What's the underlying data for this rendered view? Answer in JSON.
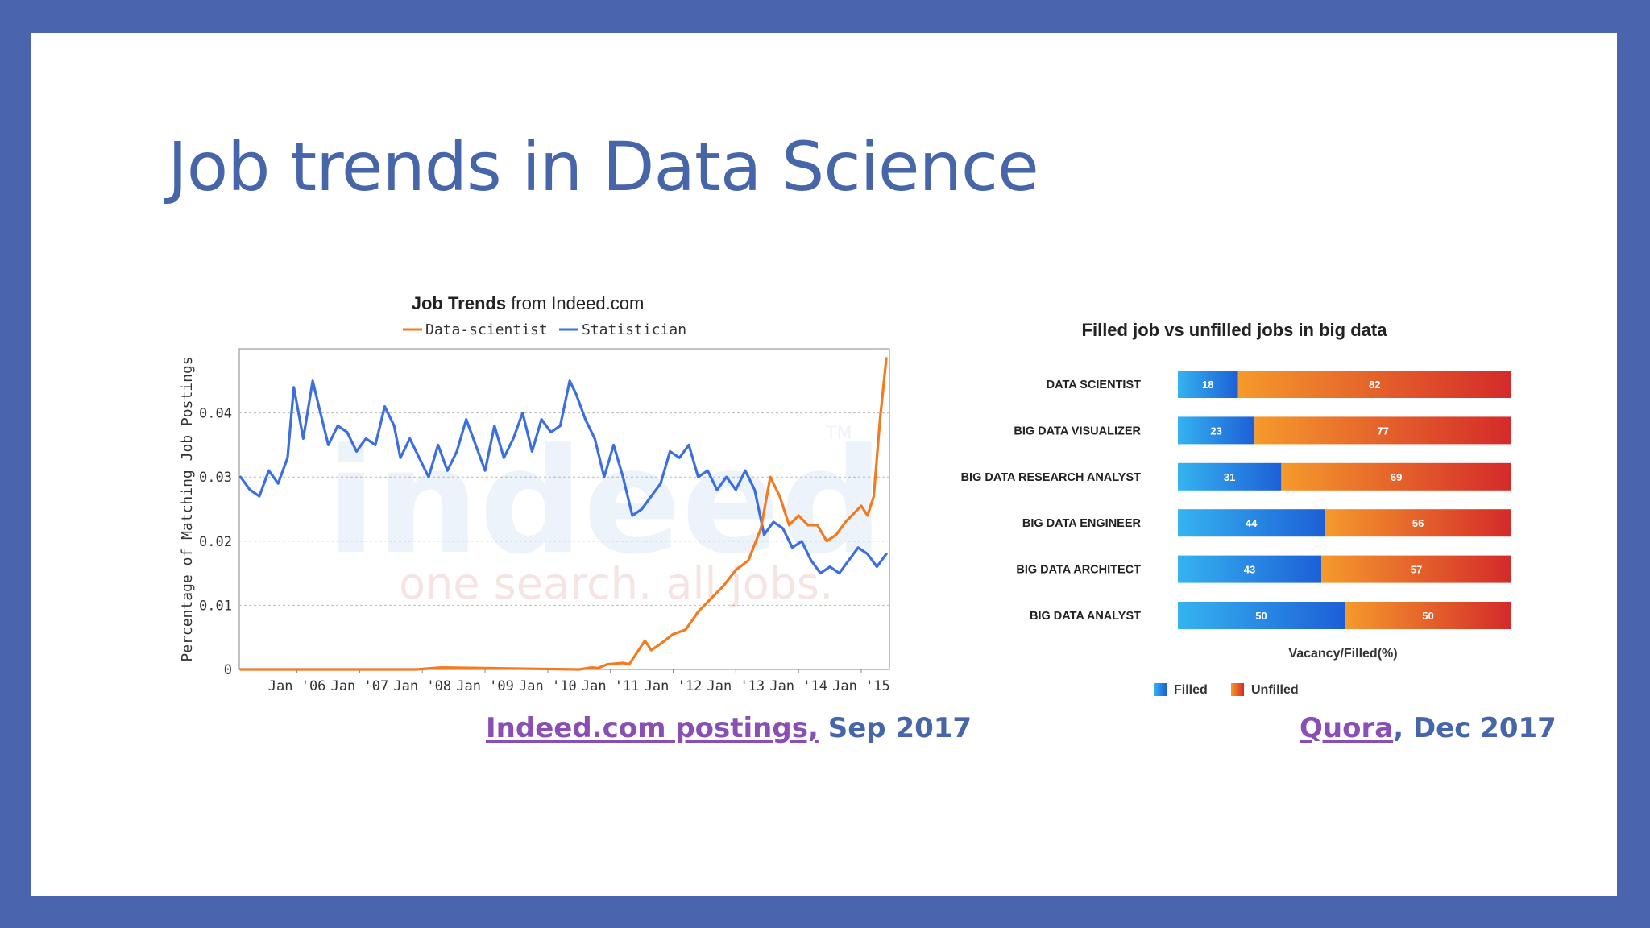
{
  "slide": {
    "title": "Job trends in Data Science",
    "caption_left": {
      "link": "Indeed.com postings,",
      "text": " Sep 2017"
    },
    "caption_right": {
      "link": "Quora",
      "text": ", Dec 2017"
    }
  },
  "colors": {
    "frame": "#4a65ad",
    "title": "#4766aa",
    "link": "#8a4fb5",
    "data_scientist": "#f47a20",
    "statistician": "#3b6fe0",
    "filled": "#1f8de2",
    "unfilled": "#e8622a"
  },
  "chart_data": [
    {
      "type": "line",
      "title_bold": "Job Trends",
      "title_rest": " from Indeed.com",
      "ylabel": "Percentage of Matching Job Postings",
      "watermark": {
        "brand": "indeed",
        "tagline": "one search. all jobs.",
        "tm": "TM"
      },
      "x_ticks": [
        "Jan '06",
        "Jan '07",
        "Jan '08",
        "Jan '09",
        "Jan '10",
        "Jan '11",
        "Jan '12",
        "Jan '13",
        "Jan '14",
        "Jan '15"
      ],
      "y_ticks": [
        "0",
        "0.01",
        "0.02",
        "0.03",
        "0.04"
      ],
      "xlim": [
        2005.08,
        2015.45
      ],
      "ylim": [
        0,
        0.05
      ],
      "grid": true,
      "legend_position": "top",
      "series": [
        {
          "name": "Data-scientist",
          "color": "#f47a20",
          "x": [
            2005.1,
            2007.9,
            2008.3,
            2010.5,
            2010.7,
            2010.8,
            2010.95,
            2011.2,
            2011.3,
            2011.55,
            2011.65,
            2011.8,
            2012.0,
            2012.2,
            2012.4,
            2012.6,
            2012.8,
            2013.0,
            2013.2,
            2013.4,
            2013.55,
            2013.7,
            2013.85,
            2014.0,
            2014.15,
            2014.3,
            2014.45,
            2014.6,
            2014.75,
            2014.9,
            2015.0,
            2015.1,
            2015.2,
            2015.3,
            2015.4
          ],
          "y": [
            0,
            0,
            0.0003,
            0,
            0.0003,
            0.0002,
            0.0008,
            0.001,
            0.0008,
            0.0045,
            0.003,
            0.004,
            0.0055,
            0.0062,
            0.009,
            0.011,
            0.013,
            0.0155,
            0.017,
            0.022,
            0.03,
            0.027,
            0.0225,
            0.024,
            0.0225,
            0.0225,
            0.02,
            0.021,
            0.023,
            0.0245,
            0.0255,
            0.024,
            0.027,
            0.039,
            0.0485
          ]
        },
        {
          "name": "Statistician",
          "color": "#3b6fe0",
          "x": [
            2005.1,
            2005.25,
            2005.4,
            2005.55,
            2005.7,
            2005.85,
            2005.95,
            2006.1,
            2006.25,
            2006.35,
            2006.5,
            2006.65,
            2006.8,
            2006.95,
            2007.1,
            2007.25,
            2007.4,
            2007.55,
            2007.65,
            2007.8,
            2007.95,
            2008.1,
            2008.25,
            2008.4,
            2008.55,
            2008.7,
            2008.85,
            2009.0,
            2009.15,
            2009.3,
            2009.45,
            2009.6,
            2009.75,
            2009.9,
            2010.05,
            2010.2,
            2010.35,
            2010.45,
            2010.6,
            2010.75,
            2010.9,
            2011.05,
            2011.2,
            2011.35,
            2011.5,
            2011.65,
            2011.8,
            2011.95,
            2012.1,
            2012.25,
            2012.4,
            2012.55,
            2012.7,
            2012.85,
            2013.0,
            2013.15,
            2013.3,
            2013.45,
            2013.6,
            2013.75,
            2013.9,
            2014.05,
            2014.2,
            2014.35,
            2014.5,
            2014.65,
            2014.8,
            2014.95,
            2015.1,
            2015.25,
            2015.4
          ],
          "y": [
            0.03,
            0.028,
            0.027,
            0.031,
            0.029,
            0.033,
            0.044,
            0.036,
            0.045,
            0.041,
            0.035,
            0.038,
            0.037,
            0.034,
            0.036,
            0.035,
            0.041,
            0.038,
            0.033,
            0.036,
            0.033,
            0.03,
            0.035,
            0.031,
            0.034,
            0.039,
            0.035,
            0.031,
            0.038,
            0.033,
            0.036,
            0.04,
            0.034,
            0.039,
            0.037,
            0.038,
            0.045,
            0.043,
            0.039,
            0.036,
            0.03,
            0.035,
            0.03,
            0.024,
            0.025,
            0.027,
            0.029,
            0.034,
            0.033,
            0.035,
            0.03,
            0.031,
            0.028,
            0.03,
            0.028,
            0.031,
            0.028,
            0.021,
            0.023,
            0.022,
            0.019,
            0.02,
            0.017,
            0.015,
            0.016,
            0.015,
            0.017,
            0.019,
            0.018,
            0.016,
            0.018
          ]
        }
      ]
    },
    {
      "type": "bar",
      "stacked": true,
      "orientation": "horizontal",
      "title": "Filled job vs unfilled jobs in big data",
      "xlabel": "Vacancy/Filled(%)",
      "categories": [
        "DATA SCIENTIST",
        "BIG DATA VISUALIZER",
        "BIG DATA RESEARCH ANALYST",
        "BIG DATA ENGINEER",
        "BIG DATA ARCHITECT",
        "BIG DATA ANALYST"
      ],
      "legend_position": "bottom",
      "series": [
        {
          "name": "Filled",
          "color": "#1f8de2",
          "values": [
            18,
            23,
            31,
            44,
            43,
            50
          ]
        },
        {
          "name": "Unfilled",
          "color": "#e8622a",
          "values": [
            82,
            77,
            69,
            56,
            57,
            50
          ]
        }
      ]
    }
  ]
}
